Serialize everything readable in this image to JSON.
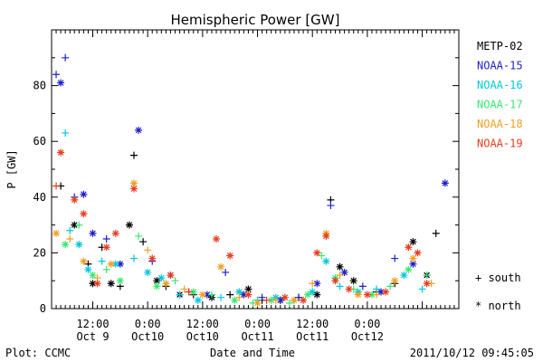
{
  "chart_data": {
    "type": "scatter",
    "title": "Hemispheric Power [GW]",
    "xlabel": "Date and Time",
    "ylabel": "P [GW]",
    "ylim": [
      0,
      100
    ],
    "yticks": [
      0,
      20,
      40,
      60,
      80
    ],
    "xlim": [
      "2011-10-09T03:00",
      "2011-10-12T20:00"
    ],
    "xticks": [
      {
        "time": "2011-10-09T12:00",
        "label1": "12:00",
        "label2": "Oct 9"
      },
      {
        "time": "2011-10-10T00:00",
        "label1": "0:00",
        "label2": "Oct10"
      },
      {
        "time": "2011-10-10T12:00",
        "label1": "12:00",
        "label2": "Oct10"
      },
      {
        "time": "2011-10-11T00:00",
        "label1": "0:00",
        "label2": "Oct11"
      },
      {
        "time": "2011-10-11T12:00",
        "label1": "12:00",
        "label2": "Oct11"
      },
      {
        "time": "2011-10-12T00:00",
        "label1": "0:00",
        "label2": "Oct12"
      }
    ],
    "legend": {
      "position": "right",
      "markers": [
        {
          "symbol": "+",
          "label": "south"
        },
        {
          "symbol": "*",
          "label": "north"
        }
      ]
    },
    "series": [
      {
        "name": "METP-02",
        "color": "#000000",
        "points": [
          [
            "2011-10-09T05:00",
            44,
            "+"
          ],
          [
            "2011-10-09T08:00",
            30,
            "*"
          ],
          [
            "2011-10-09T11:00",
            16,
            "+"
          ],
          [
            "2011-10-09T12:00",
            9,
            "*"
          ],
          [
            "2011-10-09T14:00",
            22,
            "+"
          ],
          [
            "2011-10-09T16:00",
            9,
            "*"
          ],
          [
            "2011-10-09T18:00",
            8,
            "+"
          ],
          [
            "2011-10-09T20:00",
            30,
            "*"
          ],
          [
            "2011-10-09T21:00",
            55,
            "+"
          ],
          [
            "2011-10-09T23:00",
            24,
            "+"
          ],
          [
            "2011-10-10T02:00",
            10,
            "*"
          ],
          [
            "2011-10-10T04:00",
            8,
            "+"
          ],
          [
            "2011-10-10T07:00",
            5,
            "*"
          ],
          [
            "2011-10-10T10:00",
            5,
            "+"
          ],
          [
            "2011-10-10T14:00",
            4,
            "*"
          ],
          [
            "2011-10-10T18:00",
            5,
            "+"
          ],
          [
            "2011-10-10T22:00",
            7,
            "*"
          ],
          [
            "2011-10-11T01:00",
            3,
            "+"
          ],
          [
            "2011-10-11T05:00",
            3,
            "*"
          ],
          [
            "2011-10-11T09:00",
            4,
            "+"
          ],
          [
            "2011-10-11T13:00",
            5,
            "*"
          ],
          [
            "2011-10-11T16:00",
            39,
            "+"
          ],
          [
            "2011-10-11T18:00",
            15,
            "*"
          ],
          [
            "2011-10-11T21:00",
            10,
            "*"
          ],
          [
            "2011-10-12T02:00",
            6,
            "+"
          ],
          [
            "2011-10-12T06:00",
            9,
            "+"
          ],
          [
            "2011-10-12T10:00",
            24,
            "*"
          ],
          [
            "2011-10-12T13:00",
            12,
            "*"
          ],
          [
            "2011-10-12T15:00",
            27,
            "+"
          ]
        ]
      },
      {
        "name": "NOAA-15",
        "color": "#1f1fcc",
        "points": [
          [
            "2011-10-09T04:00",
            84,
            "+"
          ],
          [
            "2011-10-09T05:00",
            81,
            "*"
          ],
          [
            "2011-10-09T06:00",
            90,
            "+"
          ],
          [
            "2011-10-09T08:00",
            40,
            "+"
          ],
          [
            "2011-10-09T10:00",
            41,
            "*"
          ],
          [
            "2011-10-09T12:00",
            27,
            "*"
          ],
          [
            "2011-10-09T15:00",
            25,
            "+"
          ],
          [
            "2011-10-09T18:00",
            16,
            "*"
          ],
          [
            "2011-10-09T22:00",
            64,
            "*"
          ],
          [
            "2011-10-10T01:00",
            17,
            "+"
          ],
          [
            "2011-10-10T05:00",
            12,
            "*"
          ],
          [
            "2011-10-10T09:00",
            6,
            "+"
          ],
          [
            "2011-10-10T13:00",
            5,
            "*"
          ],
          [
            "2011-10-10T17:00",
            13,
            "+"
          ],
          [
            "2011-10-10T21:00",
            5,
            "*"
          ],
          [
            "2011-10-11T01:00",
            4,
            "+"
          ],
          [
            "2011-10-11T05:00",
            3,
            "*"
          ],
          [
            "2011-10-11T09:00",
            4,
            "+"
          ],
          [
            "2011-10-11T13:00",
            9,
            "*"
          ],
          [
            "2011-10-11T16:00",
            37,
            "+"
          ],
          [
            "2011-10-11T19:00",
            13,
            "*"
          ],
          [
            "2011-10-11T23:00",
            8,
            "+"
          ],
          [
            "2011-10-12T03:00",
            6,
            "*"
          ],
          [
            "2011-10-12T06:00",
            18,
            "+"
          ],
          [
            "2011-10-12T10:00",
            16,
            "*"
          ],
          [
            "2011-10-12T17:00",
            45,
            "*"
          ]
        ]
      },
      {
        "name": "NOAA-16",
        "color": "#00c8dc",
        "points": [
          [
            "2011-10-09T06:00",
            63,
            "+"
          ],
          [
            "2011-10-09T07:00",
            28,
            "+"
          ],
          [
            "2011-10-09T09:00",
            23,
            "*"
          ],
          [
            "2011-10-09T11:00",
            14,
            "*"
          ],
          [
            "2011-10-09T14:00",
            17,
            "+"
          ],
          [
            "2011-10-09T17:00",
            16,
            "*"
          ],
          [
            "2011-10-09T21:00",
            18,
            "+"
          ],
          [
            "2011-10-10T00:00",
            13,
            "*"
          ],
          [
            "2011-10-10T03:00",
            11,
            "*"
          ],
          [
            "2011-10-10T07:00",
            5,
            "+"
          ],
          [
            "2011-10-10T11:00",
            3,
            "*"
          ],
          [
            "2011-10-10T16:00",
            4,
            "+"
          ],
          [
            "2011-10-10T20:00",
            6,
            "*"
          ],
          [
            "2011-10-11T00:00",
            3,
            "+"
          ],
          [
            "2011-10-11T04:00",
            4,
            "*"
          ],
          [
            "2011-10-11T08:00",
            3,
            "+"
          ],
          [
            "2011-10-11T12:00",
            6,
            "*"
          ],
          [
            "2011-10-11T15:00",
            17,
            "*"
          ],
          [
            "2011-10-11T18:00",
            8,
            "+"
          ],
          [
            "2011-10-11T22:00",
            6,
            "*"
          ],
          [
            "2011-10-12T02:00",
            7,
            "+"
          ],
          [
            "2011-10-12T08:00",
            12,
            "*"
          ],
          [
            "2011-10-12T12:00",
            7,
            "+"
          ]
        ]
      },
      {
        "name": "NOAA-17",
        "color": "#38e870",
        "points": [
          [
            "2011-10-09T06:00",
            23,
            "*"
          ],
          [
            "2011-10-09T09:00",
            30,
            "+"
          ],
          [
            "2011-10-09T12:00",
            12,
            "*"
          ],
          [
            "2011-10-09T15:00",
            14,
            "+"
          ],
          [
            "2011-10-09T18:00",
            10,
            "*"
          ],
          [
            "2011-10-09T22:00",
            26,
            "+"
          ],
          [
            "2011-10-10T02:00",
            8,
            "*"
          ],
          [
            "2011-10-10T06:00",
            10,
            "+"
          ],
          [
            "2011-10-10T10:00",
            6,
            "*"
          ],
          [
            "2011-10-10T14:00",
            5,
            "+"
          ],
          [
            "2011-10-10T19:00",
            3,
            "*"
          ],
          [
            "2011-10-10T23:00",
            2,
            "+"
          ],
          [
            "2011-10-11T03:00",
            3,
            "*"
          ],
          [
            "2011-10-11T07:00",
            2,
            "+"
          ],
          [
            "2011-10-11T11:00",
            5,
            "*"
          ],
          [
            "2011-10-11T14:00",
            19,
            "+"
          ],
          [
            "2011-10-11T17:00",
            11,
            "*"
          ],
          [
            "2011-10-11T21:00",
            7,
            "+"
          ],
          [
            "2011-10-12T01:00",
            5,
            "*"
          ],
          [
            "2011-10-12T05:00",
            8,
            "+"
          ],
          [
            "2011-10-12T09:00",
            14,
            "*"
          ],
          [
            "2011-10-12T13:00",
            12,
            "+"
          ]
        ]
      },
      {
        "name": "NOAA-18",
        "color": "#f0a020",
        "points": [
          [
            "2011-10-09T04:00",
            27,
            "*"
          ],
          [
            "2011-10-09T07:00",
            25,
            "+"
          ],
          [
            "2011-10-09T10:00",
            17,
            "*"
          ],
          [
            "2011-10-09T13:00",
            11,
            "+"
          ],
          [
            "2011-10-09T16:00",
            16,
            "*"
          ],
          [
            "2011-10-09T21:00",
            45,
            "*"
          ],
          [
            "2011-10-10T00:00",
            21,
            "+"
          ],
          [
            "2011-10-10T04:00",
            9,
            "*"
          ],
          [
            "2011-10-10T08:00",
            7,
            "+"
          ],
          [
            "2011-10-10T12:00",
            5,
            "*"
          ],
          [
            "2011-10-10T16:00",
            15,
            "*"
          ],
          [
            "2011-10-10T20:00",
            4,
            "+"
          ],
          [
            "2011-10-11T00:00",
            2,
            "*"
          ],
          [
            "2011-10-11T04:00",
            3,
            "+"
          ],
          [
            "2011-10-11T08:00",
            3,
            "*"
          ],
          [
            "2011-10-11T12:00",
            9,
            "+"
          ],
          [
            "2011-10-11T15:00",
            27,
            "*"
          ],
          [
            "2011-10-11T18:00",
            12,
            "+"
          ],
          [
            "2011-10-11T22:00",
            5,
            "*"
          ],
          [
            "2011-10-12T02:00",
            5,
            "+"
          ],
          [
            "2011-10-12T06:00",
            10,
            "*"
          ],
          [
            "2011-10-12T10:00",
            18,
            "*"
          ],
          [
            "2011-10-12T14:00",
            9,
            "+"
          ]
        ]
      },
      {
        "name": "NOAA-19",
        "color": "#e83c20",
        "points": [
          [
            "2011-10-09T04:00",
            44,
            "+"
          ],
          [
            "2011-10-09T05:00",
            56,
            "*"
          ],
          [
            "2011-10-09T08:00",
            39,
            "*"
          ],
          [
            "2011-10-09T10:00",
            34,
            "*"
          ],
          [
            "2011-10-09T13:00",
            9,
            "*"
          ],
          [
            "2011-10-09T15:00",
            22,
            "*"
          ],
          [
            "2011-10-09T17:00",
            27,
            "*"
          ],
          [
            "2011-10-09T21:00",
            43,
            "*"
          ],
          [
            "2011-10-10T01:00",
            18,
            "*"
          ],
          [
            "2011-10-10T05:00",
            12,
            "*"
          ],
          [
            "2011-10-10T09:00",
            6,
            "+"
          ],
          [
            "2011-10-10T15:00",
            25,
            "*"
          ],
          [
            "2011-10-10T18:00",
            19,
            "*"
          ],
          [
            "2011-10-10T22:00",
            5,
            "*"
          ],
          [
            "2011-10-11T02:00",
            3,
            "+"
          ],
          [
            "2011-10-11T06:00",
            4,
            "*"
          ],
          [
            "2011-10-11T10:00",
            3,
            "*"
          ],
          [
            "2011-10-11T13:00",
            20,
            "*"
          ],
          [
            "2011-10-11T15:00",
            26,
            "*"
          ],
          [
            "2011-10-11T17:00",
            10,
            "*"
          ],
          [
            "2011-10-11T20:00",
            7,
            "*"
          ],
          [
            "2011-10-12T00:00",
            5,
            "*"
          ],
          [
            "2011-10-12T04:00",
            6,
            "*"
          ],
          [
            "2011-10-12T09:00",
            22,
            "*"
          ],
          [
            "2011-10-12T11:00",
            20,
            "*"
          ],
          [
            "2011-10-12T13:00",
            9,
            "*"
          ]
        ]
      }
    ]
  },
  "footer": {
    "left": "Plot: CCMC",
    "center": "Date and Time",
    "right": "2011/10/12 09:45:05"
  }
}
